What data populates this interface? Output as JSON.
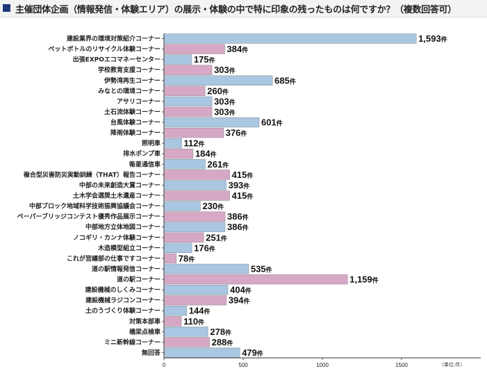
{
  "title": "主催団体企画（情報発信・体験エリア）の展示・体験の中で特に印象の残ったものは何ですか？（複数回答可）",
  "unit_note": "（単位:件）",
  "value_suffix": "件",
  "colors": {
    "blue": "#a9c6e2",
    "pink": "#d6a8c6",
    "title_square": "#1f3a7a"
  },
  "chart_data": {
    "type": "bar",
    "orientation": "horizontal",
    "title": "主催団体企画（情報発信・体験エリア）の展示・体験の中で特に印象の残ったものは何ですか？（複数回答可）",
    "xlim": [
      0,
      2000
    ],
    "xticks": [
      0,
      500,
      1000,
      1500
    ],
    "unit": "件",
    "grid": false,
    "categories": [
      "建設業界の環境対策紹介コーナー",
      "ペットボトルのリサイクル体験コーナー",
      "出張EXPOエコマネーセンター",
      "学校教育支援コーナー",
      "伊勢湾再生コーナー",
      "みなとの環境コーナー",
      "アサリコーナー",
      "土石流体験コーナー",
      "台風体験コーナー",
      "降雨体験コーナー",
      "照明車",
      "排水ポンプ車",
      "衛星通信車",
      "複合型災害防災実動訓練（THAT）報告コーナー",
      "中部の未来創造大賞コーナー",
      "土木学会選奨土木遺産コーナー",
      "中部ブロック地域科学技術振興協議会コーナー",
      "ペーパーブリッジコンテスト優秀作品展示コーナー",
      "中部地方立体地図コーナー",
      "ノコギリ・カンナ体験コーナー",
      "木造模型組立コーナー",
      "これが営繕部の仕事ですコーナー",
      "道の駅情報発信コーナー",
      "道の駅コーナー",
      "建設機械のしくみコーナー",
      "建設機械ラジコンコーナー",
      "土のうづくり体験コーナー",
      "対策本部車",
      "橋梁点検車",
      "ミニ新幹線コーナー",
      "無回答"
    ],
    "values": [
      1593,
      384,
      175,
      303,
      685,
      260,
      303,
      303,
      601,
      376,
      112,
      184,
      261,
      415,
      393,
      415,
      230,
      386,
      386,
      251,
      176,
      78,
      535,
      1159,
      404,
      394,
      144,
      110,
      278,
      288,
      479
    ],
    "value_labels": [
      "1,593",
      "384",
      "175",
      "303",
      "685",
      "260",
      "303",
      "303",
      "601",
      "376",
      "112",
      "184",
      "261",
      "415",
      "393",
      "415",
      "230",
      "386",
      "386",
      "251",
      "176",
      "78",
      "535",
      "1,159",
      "404",
      "394",
      "144",
      "110",
      "278",
      "288",
      "479"
    ],
    "bar_colors": [
      "blue",
      "pink",
      "blue",
      "pink",
      "blue",
      "pink",
      "blue",
      "pink",
      "blue",
      "pink",
      "blue",
      "pink",
      "blue",
      "pink",
      "blue",
      "pink",
      "blue",
      "pink",
      "blue",
      "pink",
      "blue",
      "pink",
      "blue",
      "pink",
      "blue",
      "pink",
      "blue",
      "pink",
      "blue",
      "pink",
      "blue"
    ]
  }
}
